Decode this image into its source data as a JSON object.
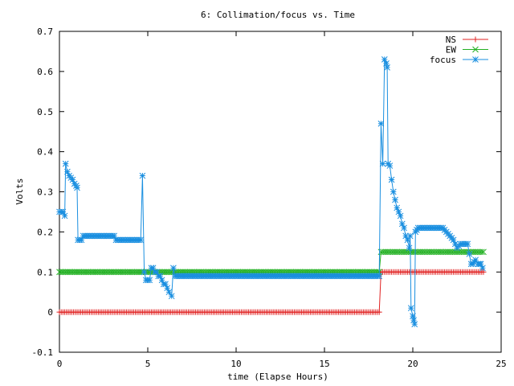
{
  "chart_data": {
    "type": "line",
    "title": "6: Collimation/focus vs. Time",
    "xlabel": "time (Elapse Hours)",
    "ylabel": "Volts",
    "xlim": [
      0,
      25
    ],
    "ylim": [
      -0.1,
      0.7
    ],
    "x_ticks": [
      0,
      5,
      10,
      15,
      20,
      25
    ],
    "y_ticks": [
      -0.1,
      0,
      0.1,
      0.2,
      0.3,
      0.4,
      0.5,
      0.6,
      0.7
    ],
    "x_tick_labels": [
      "0",
      "5",
      "10",
      "15",
      "20",
      "25"
    ],
    "y_tick_labels": [
      "-0.1",
      "0",
      "0.1",
      "0.2",
      "0.3",
      "0.4",
      "0.5",
      "0.6",
      "0.7"
    ],
    "grid": false,
    "legend_position": "top-right",
    "series": [
      {
        "name": "NS",
        "color": "#e02020",
        "marker": "plus",
        "points": [
          [
            0,
            0
          ],
          [
            18.1,
            0
          ],
          [
            18.2,
            0.1
          ],
          [
            24,
            0.1
          ]
        ]
      },
      {
        "name": "EW",
        "color": "#22b022",
        "marker": "cross",
        "points": [
          [
            0,
            0.1
          ],
          [
            18.1,
            0.1
          ],
          [
            18.2,
            0.15
          ],
          [
            24,
            0.15
          ]
        ]
      },
      {
        "name": "focus",
        "color": "#1a8fe0",
        "marker": "star",
        "points": [
          [
            0,
            0.25
          ],
          [
            0.1,
            0.25
          ],
          [
            0.2,
            0.25
          ],
          [
            0.3,
            0.24
          ],
          [
            0.35,
            0.37
          ],
          [
            0.45,
            0.35
          ],
          [
            0.55,
            0.34
          ],
          [
            0.65,
            0.335
          ],
          [
            0.75,
            0.33
          ],
          [
            0.85,
            0.32
          ],
          [
            0.95,
            0.315
          ],
          [
            1.0,
            0.31
          ],
          [
            1.05,
            0.18
          ],
          [
            1.15,
            0.18
          ],
          [
            1.25,
            0.18
          ],
          [
            1.35,
            0.19
          ],
          [
            3.1,
            0.19
          ],
          [
            3.2,
            0.18
          ],
          [
            4.6,
            0.18
          ],
          [
            4.7,
            0.34
          ],
          [
            4.8,
            0.1
          ],
          [
            4.9,
            0.08
          ],
          [
            5.0,
            0.08
          ],
          [
            5.1,
            0.08
          ],
          [
            5.2,
            0.11
          ],
          [
            5.3,
            0.11
          ],
          [
            5.4,
            0.1
          ],
          [
            5.5,
            0.1
          ],
          [
            5.6,
            0.09
          ],
          [
            5.7,
            0.09
          ],
          [
            5.8,
            0.08
          ],
          [
            5.9,
            0.07
          ],
          [
            6.0,
            0.07
          ],
          [
            6.1,
            0.06
          ],
          [
            6.2,
            0.05
          ],
          [
            6.35,
            0.04
          ],
          [
            6.45,
            0.11
          ],
          [
            6.55,
            0.09
          ],
          [
            18.1,
            0.09
          ],
          [
            18.2,
            0.47
          ],
          [
            18.3,
            0.37
          ],
          [
            18.4,
            0.63
          ],
          [
            18.5,
            0.62
          ],
          [
            18.55,
            0.61
          ],
          [
            18.6,
            0.37
          ],
          [
            18.7,
            0.365
          ],
          [
            18.8,
            0.33
          ],
          [
            18.9,
            0.3
          ],
          [
            19.0,
            0.28
          ],
          [
            19.1,
            0.26
          ],
          [
            19.2,
            0.25
          ],
          [
            19.3,
            0.24
          ],
          [
            19.4,
            0.22
          ],
          [
            19.5,
            0.21
          ],
          [
            19.6,
            0.19
          ],
          [
            19.7,
            0.18
          ],
          [
            19.8,
            0.16
          ],
          [
            19.85,
            0.19
          ],
          [
            19.9,
            0.01
          ],
          [
            20.0,
            -0.01
          ],
          [
            20.05,
            -0.02
          ],
          [
            20.1,
            -0.03
          ],
          [
            20.15,
            0.2
          ],
          [
            20.3,
            0.21
          ],
          [
            21.7,
            0.21
          ],
          [
            21.9,
            0.2
          ],
          [
            22.1,
            0.19
          ],
          [
            22.3,
            0.18
          ],
          [
            22.5,
            0.16
          ],
          [
            22.7,
            0.17
          ],
          [
            23.1,
            0.17
          ],
          [
            23.3,
            0.12
          ],
          [
            23.4,
            0.12
          ],
          [
            23.55,
            0.13
          ],
          [
            23.7,
            0.12
          ],
          [
            23.85,
            0.12
          ],
          [
            23.95,
            0.11
          ]
        ]
      }
    ]
  }
}
